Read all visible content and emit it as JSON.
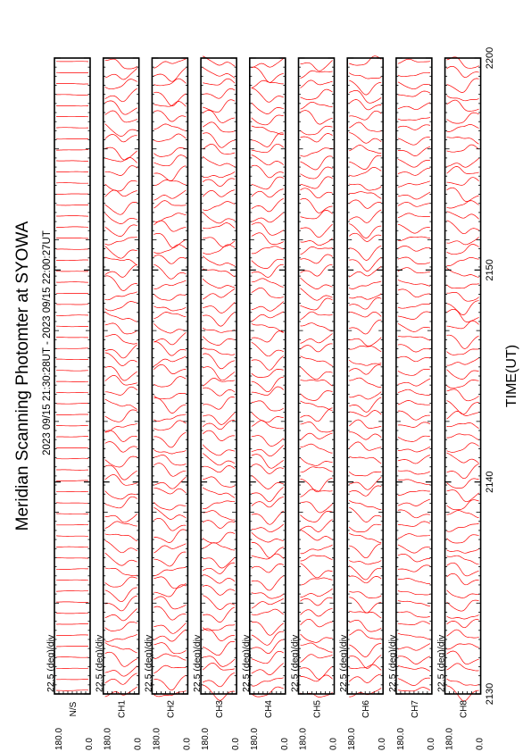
{
  "figure": {
    "title": "Meridian Scanning Photomter at SYOWA",
    "time_range": "2023 09/15 21:30:28UT - 2023 09/15 22:00:27UT",
    "time_axis_label": "TIME(UT)",
    "scale_label": "22.5 (deg)/div"
  },
  "chart_data": {
    "type": "line",
    "title": "Meridian Scanning Photomter at SYOWA",
    "subtitle": "2023 09/15 21:30:28UT - 2023 09/15 22:00:27UT",
    "xlabel": "TIME(UT)",
    "x_ticks": [
      "2130",
      "2140",
      "2150",
      "2200"
    ],
    "panel_scale": "22.5 (deg)/div",
    "panel_y_ticks": [
      "180.0",
      "0.0"
    ],
    "orientation": "rotated 90 degrees counter-clockwise",
    "line_color": "#ff0000",
    "channels": [
      {
        "label": "N/S",
        "description": "near-constant reference traces"
      },
      {
        "label": "CH1",
        "description": "stacked meridian scan profiles"
      },
      {
        "label": "CH2",
        "description": "stacked meridian scan profiles"
      },
      {
        "label": "CH3",
        "description": "stacked meridian scan profiles"
      },
      {
        "label": "CH4",
        "description": "stacked meridian scan profiles"
      },
      {
        "label": "CH5",
        "description": "stacked meridian scan profiles"
      },
      {
        "label": "CH6",
        "description": "stacked meridian scan profiles"
      },
      {
        "label": "CH7",
        "description": "stacked meridian scan profiles"
      },
      {
        "label": "CH8",
        "description": "stacked meridian scan profiles"
      }
    ]
  }
}
